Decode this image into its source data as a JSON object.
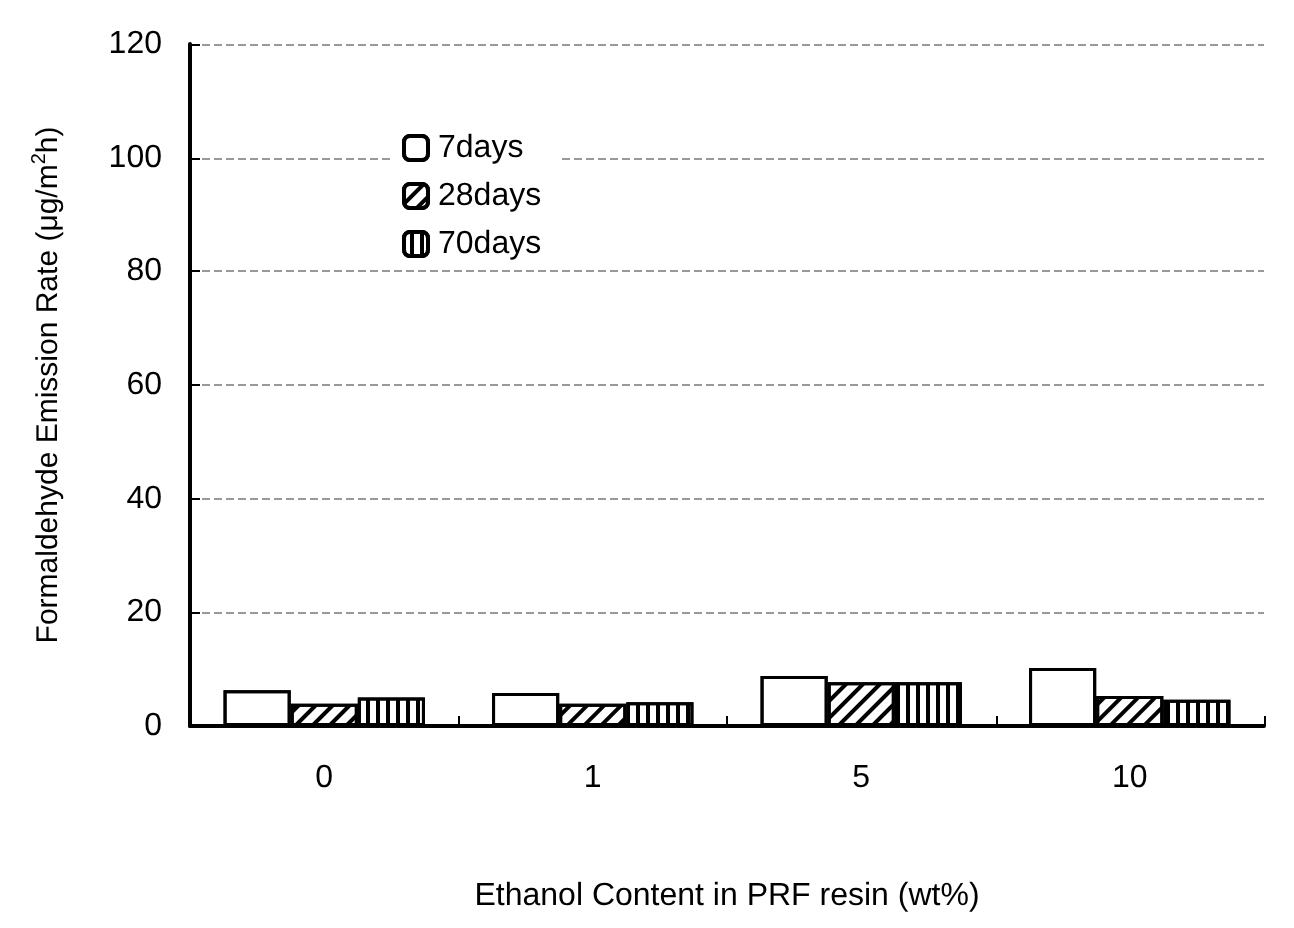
{
  "chart_data": {
    "type": "bar",
    "xlabel": "Ethanol Content in PRF resin (wt%)",
    "ylabel": "Formaldehyde Emission Rate (μg/m$^{2}$h)",
    "categories": [
      "0",
      "1",
      "5",
      "10"
    ],
    "series": [
      {
        "name": "7days",
        "color": "#ffffff",
        "values": [
          6.3,
          5.8,
          8.8,
          10.2
        ]
      },
      {
        "name": "28days",
        "color": "#ffffff",
        "values": [
          3.9,
          3.9,
          7.7,
          5.3
        ]
      },
      {
        "name": "70days",
        "color": "#ffffff",
        "values": [
          5.0,
          4.2,
          7.7,
          4.6
        ]
      }
    ],
    "ylim": [
      0,
      120
    ],
    "yticks": [
      0,
      20,
      40,
      60,
      80,
      100,
      120
    ],
    "grid": "y",
    "legend": "top left"
  }
}
